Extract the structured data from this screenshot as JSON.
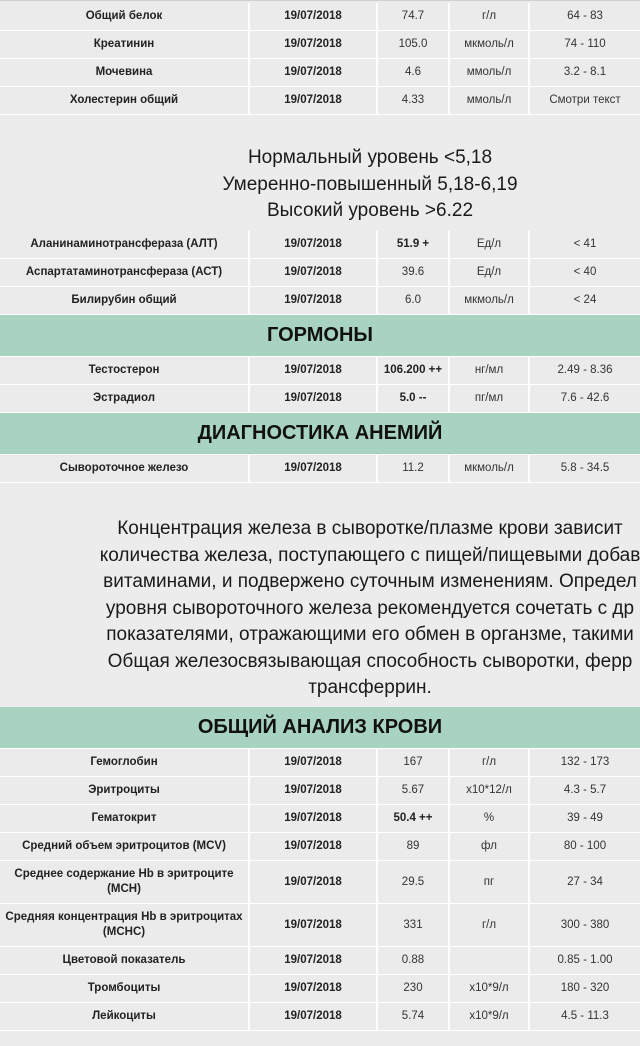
{
  "colors": {
    "header_bg": "#a9d3c1",
    "row_bg": "#ebebeb",
    "page_bg": "#ececec"
  },
  "blocks": [
    {
      "type": "rows",
      "rows": [
        {
          "name": "Общий белок",
          "date": "19/07/2018",
          "value": "74.7",
          "unit": "г/л",
          "range": "64 - 83",
          "flag": false
        },
        {
          "name": "Креатинин",
          "date": "19/07/2018",
          "value": "105.0",
          "unit": "мкмоль/л",
          "range": "74 - 110",
          "flag": false
        },
        {
          "name": "Мочевина",
          "date": "19/07/2018",
          "value": "4.6",
          "unit": "ммоль/л",
          "range": "3.2 - 8.1",
          "flag": false
        },
        {
          "name": "Холестерин общий",
          "date": "19/07/2018",
          "value": "4.33",
          "unit": "ммоль/л",
          "range": "Смотри текст",
          "flag": false
        }
      ]
    },
    {
      "type": "note",
      "variant": "chol",
      "lines": [
        "Нормальный уровень <5,18",
        "Умеренно-повышенный 5,18-6,19",
        "Высокий уровень >6.22"
      ]
    },
    {
      "type": "rows",
      "rows": [
        {
          "name": "Аланинаминотрансфераза (АЛТ)",
          "date": "19/07/2018",
          "value": "51.9 +",
          "unit": "Ед/л",
          "range": "< 41",
          "flag": true
        },
        {
          "name": "Аспартатаминотрансфераза (АСТ)",
          "date": "19/07/2018",
          "value": "39.6",
          "unit": "Ед/л",
          "range": "< 40",
          "flag": false
        },
        {
          "name": "Билирубин общий",
          "date": "19/07/2018",
          "value": "6.0",
          "unit": "мкмоль/л",
          "range": "< 24",
          "flag": false
        }
      ]
    },
    {
      "type": "header",
      "title": "ГОРМОНЫ"
    },
    {
      "type": "rows",
      "rows": [
        {
          "name": "Тестостерон",
          "date": "19/07/2018",
          "value": "106.200 ++",
          "unit": "нг/мл",
          "range": "2.49 - 8.36",
          "flag": true
        },
        {
          "name": "Эстрадиол",
          "date": "19/07/2018",
          "value": "5.0 --",
          "unit": "пг/мл",
          "range": "7.6 - 42.6",
          "flag": true
        }
      ]
    },
    {
      "type": "header",
      "title": "ДИАГНОСТИКА АНЕМИЙ"
    },
    {
      "type": "rows",
      "rows": [
        {
          "name": "Сывороточное железо",
          "date": "19/07/2018",
          "value": "11.2",
          "unit": "мкмоль/л",
          "range": "5.8 - 34.5",
          "flag": false
        }
      ]
    },
    {
      "type": "note",
      "variant": "iron",
      "lines": [
        "Концентрация железа в сыворотке/плазме крови зависит",
        "количества железа, поступающего с пищей/пищевыми добав",
        "витаминами, и подвержено суточным изменениям. Определ",
        "уровня сывороточного железа рекомендуется сочетать с др",
        "показателями, отражающими его обмен в органзме, такими",
        "Общая железосвязывающая способность сыворотки, ферр",
        "трансферрин."
      ]
    },
    {
      "type": "header",
      "title": "ОБЩИЙ АНАЛИЗ КРОВИ"
    },
    {
      "type": "rows",
      "rows": [
        {
          "name": "Гемоглобин",
          "date": "19/07/2018",
          "value": "167",
          "unit": "г/л",
          "range": "132 - 173",
          "flag": false
        },
        {
          "name": "Эритроциты",
          "date": "19/07/2018",
          "value": "5.67",
          "unit": "x10*12/л",
          "range": "4.3 - 5.7",
          "flag": false
        },
        {
          "name": "Гематокрит",
          "date": "19/07/2018",
          "value": "50.4 ++",
          "unit": "%",
          "range": "39 - 49",
          "flag": true
        },
        {
          "name": "Средний объем эритроцитов (MCV)",
          "date": "19/07/2018",
          "value": "89",
          "unit": "фл",
          "range": "80 - 100",
          "flag": false
        },
        {
          "name": "Среднее содержание Hb в эритроците (MCH)",
          "date": "19/07/2018",
          "value": "29.5",
          "unit": "пг",
          "range": "27 - 34",
          "flag": false
        },
        {
          "name": "Средняя концентрация Hb в эритроцитах (MCHC)",
          "date": "19/07/2018",
          "value": "331",
          "unit": "г/л",
          "range": "300 - 380",
          "flag": false
        },
        {
          "name": "Цветовой показатель",
          "date": "19/07/2018",
          "value": "0.88",
          "unit": "",
          "range": "0.85 - 1.00",
          "flag": false
        },
        {
          "name": "Тромбоциты",
          "date": "19/07/2018",
          "value": "230",
          "unit": "x10*9/л",
          "range": "180 - 320",
          "flag": false
        },
        {
          "name": "Лейкоциты",
          "date": "19/07/2018",
          "value": "5.74",
          "unit": "x10*9/л",
          "range": "4.5 - 11.3",
          "flag": false
        }
      ]
    }
  ]
}
